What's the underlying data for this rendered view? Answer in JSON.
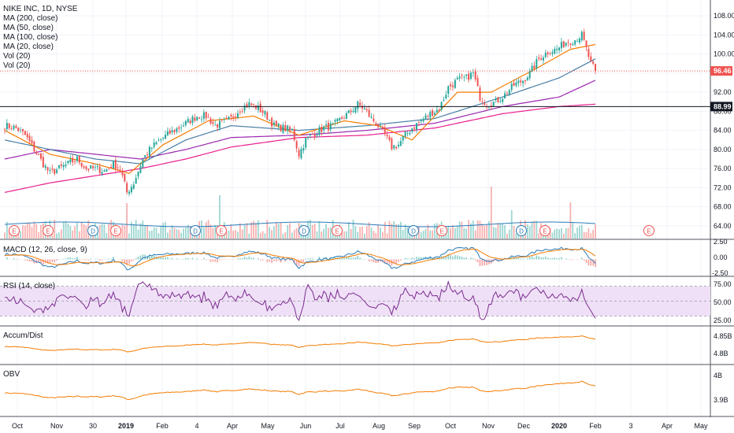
{
  "chart_data": {
    "type": "candlestick",
    "symbol_label": "NIKE INC, 1D, NYSE",
    "indicator_labels": [
      "MA (200, close)",
      "MA (50, close)",
      "MA (100, close)",
      "MA (20, close)",
      "Vol (20)",
      "Vol (20)"
    ],
    "x_tick_labels": [
      "Oct",
      "Nov",
      "30",
      "2019",
      "Feb",
      "4",
      "Apr",
      "May",
      "Jun",
      "Jul",
      "Aug",
      "Sep",
      "Oct",
      "Nov",
      "Dec",
      "2020",
      "Feb",
      "3",
      "Apr",
      "May"
    ],
    "price_axis": {
      "range": [
        62,
        110
      ],
      "ticks": [
        "108.00",
        "104.00",
        "100.00",
        "96.00",
        "92.00",
        "88.00",
        "84.00",
        "80.00",
        "76.00",
        "72.00",
        "68.00",
        "64.00"
      ],
      "last_price_label": "96.46",
      "last_price": 96.46,
      "hline_label": "88.99",
      "hline_value": 88.99
    },
    "price_series_anchors": [
      [
        0,
        85
      ],
      [
        5,
        84.5
      ],
      [
        9,
        83
      ],
      [
        13,
        80
      ],
      [
        17,
        77
      ],
      [
        20,
        75
      ],
      [
        24,
        76
      ],
      [
        28,
        77
      ],
      [
        32,
        78
      ],
      [
        36,
        76
      ],
      [
        40,
        76
      ],
      [
        44,
        75.5
      ],
      [
        48,
        77
      ],
      [
        51,
        76
      ],
      [
        54,
        71
      ],
      [
        57,
        73
      ],
      [
        61,
        78
      ],
      [
        65,
        80.5
      ],
      [
        70,
        82.5
      ],
      [
        75,
        84
      ],
      [
        80,
        85.5
      ],
      [
        85,
        87
      ],
      [
        89,
        87
      ],
      [
        93,
        85
      ],
      [
        96,
        85.5
      ],
      [
        100,
        86.5
      ],
      [
        104,
        88.5
      ],
      [
        108,
        89.5
      ],
      [
        111,
        89
      ],
      [
        115,
        87.5
      ],
      [
        119,
        85
      ],
      [
        123,
        84.5
      ],
      [
        127,
        84
      ],
      [
        130,
        79
      ],
      [
        133,
        82
      ],
      [
        137,
        83.5
      ],
      [
        141,
        84.5
      ],
      [
        145,
        85
      ],
      [
        149,
        86.5
      ],
      [
        153,
        88
      ],
      [
        156,
        89.5
      ],
      [
        159,
        88.5
      ],
      [
        162,
        86.5
      ],
      [
        165,
        85
      ],
      [
        168,
        83
      ],
      [
        171,
        80.5
      ],
      [
        174,
        81
      ],
      [
        177,
        83
      ],
      [
        180,
        84.5
      ],
      [
        184,
        86
      ],
      [
        188,
        87.5
      ],
      [
        192,
        88.5
      ],
      [
        196,
        93
      ],
      [
        200,
        94.5
      ],
      [
        204,
        95
      ],
      [
        207,
        96
      ],
      [
        210,
        91
      ],
      [
        213,
        89.5
      ],
      [
        217,
        90
      ],
      [
        221,
        91.5
      ],
      [
        225,
        93.5
      ],
      [
        229,
        94.5
      ],
      [
        232,
        96
      ],
      [
        236,
        99
      ],
      [
        240,
        100.5
      ],
      [
        244,
        101
      ],
      [
        248,
        102.5
      ],
      [
        252,
        103
      ],
      [
        255,
        104
      ],
      [
        257,
        101
      ],
      [
        259,
        98
      ],
      [
        261,
        96.46
      ]
    ],
    "moving_average_anchors": {
      "ma200": [
        [
          0,
          71
        ],
        [
          20,
          73
        ],
        [
          40,
          74.5
        ],
        [
          60,
          76
        ],
        [
          80,
          78
        ],
        [
          100,
          80.5
        ],
        [
          130,
          82.5
        ],
        [
          160,
          83
        ],
        [
          190,
          84.5
        ],
        [
          220,
          87.5
        ],
        [
          245,
          89
        ],
        [
          261,
          89.5
        ]
      ],
      "ma100": [
        [
          0,
          78
        ],
        [
          20,
          80
        ],
        [
          40,
          79
        ],
        [
          60,
          78
        ],
        [
          80,
          80
        ],
        [
          100,
          82.5
        ],
        [
          130,
          83
        ],
        [
          160,
          84
        ],
        [
          190,
          85.5
        ],
        [
          220,
          89
        ],
        [
          245,
          91
        ],
        [
          261,
          94.5
        ]
      ],
      "ma50": [
        [
          0,
          82
        ],
        [
          20,
          80
        ],
        [
          40,
          78
        ],
        [
          60,
          77
        ],
        [
          80,
          82
        ],
        [
          100,
          85
        ],
        [
          130,
          84
        ],
        [
          160,
          85
        ],
        [
          190,
          86.5
        ],
        [
          220,
          91
        ],
        [
          245,
          95
        ],
        [
          261,
          99
        ]
      ],
      "ma20": [
        [
          0,
          84
        ],
        [
          20,
          79
        ],
        [
          40,
          77
        ],
        [
          55,
          75
        ],
        [
          70,
          81
        ],
        [
          90,
          86
        ],
        [
          110,
          87
        ],
        [
          130,
          83
        ],
        [
          150,
          86
        ],
        [
          165,
          85
        ],
        [
          180,
          82
        ],
        [
          200,
          92
        ],
        [
          215,
          92
        ],
        [
          235,
          97
        ],
        [
          250,
          101
        ],
        [
          261,
          102
        ]
      ]
    },
    "macd_panel": {
      "label": "MACD (12, 26, close, 9)",
      "ticks": [
        "2.50",
        "0.00",
        "-2.50"
      ],
      "range": [
        -3.2,
        3.2
      ]
    },
    "rsi_panel": {
      "label": "RSI (14, close)",
      "ticks": [
        "75.00",
        "50.00",
        "25.00"
      ],
      "range": [
        20,
        80
      ],
      "band": [
        30,
        70
      ]
    },
    "accum_panel": {
      "label": "Accum/Dist",
      "ticks": [
        "4.85B",
        "4.8B"
      ]
    },
    "obv_panel": {
      "label": "OBV",
      "ticks": [
        "4B",
        "3.9B"
      ]
    },
    "event_marker_letters": [
      "E",
      "E",
      "D",
      "E",
      "D",
      "E",
      "D",
      "E",
      "D",
      "E",
      "D",
      "E",
      "E"
    ],
    "colors": {
      "up": "#26a69a",
      "down": "#ef5350",
      "ma200": "#e91e8c",
      "ma100": "#9c27b0",
      "ma50": "#4a7fa5",
      "ma20": "#f57c00",
      "rsi_line": "#7b2d8e",
      "rsi_band": "#efe0f7",
      "accum": "#f57c00",
      "obv": "#f57c00",
      "macd": "#2b7bb9",
      "signal": "#f57c00"
    }
  }
}
